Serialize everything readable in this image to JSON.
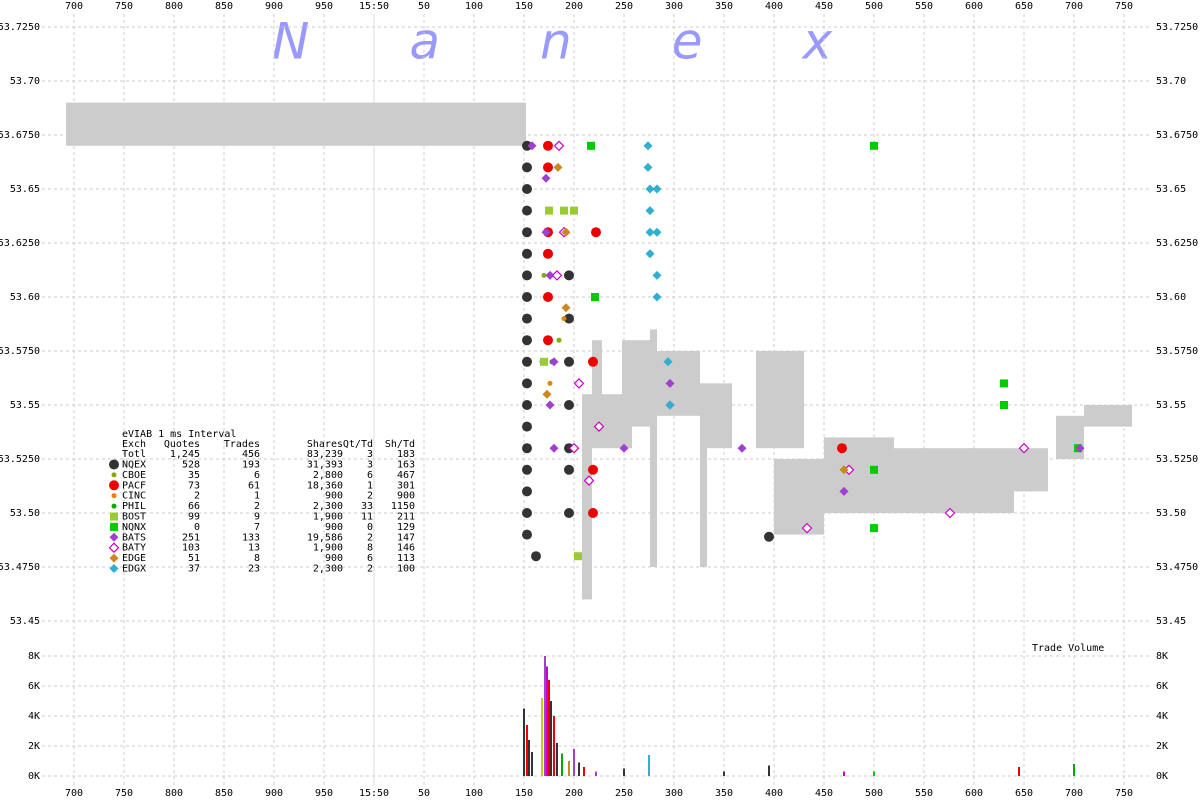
{
  "chart_data": {
    "type": "scatter",
    "watermark": "Nanex",
    "xlim": [
      -320,
      770
    ],
    "xticks": [
      {
        "value": -300,
        "label": "700"
      },
      {
        "value": -250,
        "label": "750"
      },
      {
        "value": -200,
        "label": "800"
      },
      {
        "value": -150,
        "label": "850"
      },
      {
        "value": -100,
        "label": "900"
      },
      {
        "value": -50,
        "label": "950"
      },
      {
        "value": 0,
        "label": "15:50"
      },
      50,
      100,
      150,
      200,
      250,
      300,
      350,
      400,
      450,
      500,
      550,
      600,
      650,
      700,
      750
    ],
    "ylim": [
      53.45,
      53.725
    ],
    "yticks": [
      {
        "value": 53.725,
        "label": "53.7250"
      },
      {
        "value": 53.7,
        "label": "53.70"
      },
      {
        "value": 53.675,
        "label": "53.6750"
      },
      53.65,
      {
        "value": 53.625,
        "label": "53.6250"
      },
      {
        "value": 53.6,
        "label": "53.60"
      },
      {
        "value": 53.575,
        "label": "53.5750"
      },
      53.55,
      {
        "value": 53.525,
        "label": "53.5250"
      },
      {
        "value": 53.5,
        "label": "53.50"
      },
      {
        "value": 53.475,
        "label": "53.4750"
      },
      53.45
    ],
    "grid": true,
    "nbbo": {
      "color": "#cccccc",
      "x0": [
        -308,
        208,
        218,
        228,
        248,
        258,
        276,
        283,
        326,
        333,
        382,
        400,
        450,
        520,
        640,
        682,
        710
      ],
      "x1": [
        152,
        218,
        228,
        248,
        258,
        276,
        283,
        326,
        333,
        358,
        430,
        450,
        520,
        640,
        674,
        710,
        758
      ],
      "low": [
        53.67,
        53.46,
        53.53,
        53.53,
        53.53,
        53.54,
        53.475,
        53.545,
        53.475,
        53.53,
        53.53,
        53.49,
        53.5,
        53.5,
        53.51,
        53.525,
        53.54
      ],
      "high": [
        53.69,
        53.555,
        53.58,
        53.555,
        53.58,
        53.58,
        53.585,
        53.575,
        53.56,
        53.56,
        53.575,
        53.525,
        53.535,
        53.53,
        53.53,
        53.545,
        53.55
      ]
    },
    "stats": {
      "title": "eVIAB 1 ms Interval",
      "columns": [
        "Exch",
        "Quotes",
        "Trades",
        "Shares",
        "Qt/Td",
        "Sh/Td"
      ],
      "total": [
        "Totl",
        "1,245",
        "456",
        "83,239",
        "3",
        "183"
      ]
    },
    "series": [
      {
        "name": "NQEX",
        "color": "#333333",
        "marker": "circle",
        "stats": [
          "528",
          "193",
          "31,393",
          "3",
          "163"
        ],
        "x": [
          153,
          153,
          153,
          153,
          153,
          153,
          153,
          153,
          153,
          153,
          153,
          153,
          153,
          153,
          153,
          153,
          153,
          153,
          153,
          195,
          195,
          195,
          195,
          195,
          195,
          195,
          162,
          395
        ],
        "values": [
          53.67,
          53.66,
          53.65,
          53.64,
          53.63,
          53.62,
          53.61,
          53.6,
          53.59,
          53.58,
          53.57,
          53.56,
          53.55,
          53.54,
          53.53,
          53.52,
          53.51,
          53.5,
          53.49,
          53.61,
          53.59,
          53.57,
          53.55,
          53.53,
          53.52,
          53.5,
          53.48,
          53.489
        ]
      },
      {
        "name": "CBOE",
        "color": "#88aa00",
        "marker": "small",
        "stats": [
          "35",
          "6",
          "2,800",
          "6",
          "467"
        ],
        "x": [
          170,
          185
        ],
        "values": [
          53.61,
          53.58
        ]
      },
      {
        "name": "PACF",
        "color": "#ee0000",
        "marker": "circle",
        "stats": [
          "73",
          "61",
          "18,360",
          "1",
          "301"
        ],
        "x": [
          174,
          174,
          174,
          174,
          174,
          174,
          219,
          219,
          219,
          222,
          468
        ],
        "values": [
          53.67,
          53.66,
          53.63,
          53.62,
          53.6,
          53.58,
          53.57,
          53.52,
          53.5,
          53.63,
          53.53
        ]
      },
      {
        "name": "CINC",
        "color": "#dd8800",
        "marker": "small",
        "stats": [
          "2",
          "1",
          "900",
          "2",
          "900"
        ],
        "x": [
          190,
          176
        ],
        "values": [
          53.59,
          53.56
        ]
      },
      {
        "name": "PHIL",
        "color": "#00aa00",
        "marker": "small",
        "stats": [
          "66",
          "2",
          "2,300",
          "33",
          "1150"
        ],
        "x": [
          168,
          178
        ],
        "values": [
          53.57,
          53.57
        ]
      },
      {
        "name": "BOST",
        "color": "#99cc33",
        "marker": "square",
        "stats": [
          "99",
          "9",
          "1,900",
          "11",
          "211"
        ],
        "x": [
          175,
          190,
          200,
          204,
          170
        ],
        "values": [
          53.64,
          53.64,
          53.64,
          53.48,
          53.57
        ]
      },
      {
        "name": "NQNX",
        "color": "#00cc00",
        "marker": "square",
        "stats": [
          "0",
          "7",
          "900",
          "0",
          "129"
        ],
        "x": [
          217,
          221,
          500,
          500,
          500,
          630,
          630,
          704
        ],
        "values": [
          53.67,
          53.6,
          53.67,
          53.52,
          53.493,
          53.56,
          53.55,
          53.53
        ]
      },
      {
        "name": "BATS",
        "color": "#a040d0",
        "marker": "diamond",
        "stats": [
          "251",
          "133",
          "19,586",
          "2",
          "147"
        ],
        "x": [
          158,
          172,
          172,
          176,
          180,
          176,
          180,
          250,
          296,
          296,
          368,
          470,
          706
        ],
        "values": [
          53.67,
          53.655,
          53.63,
          53.61,
          53.57,
          53.55,
          53.53,
          53.53,
          53.56,
          53.55,
          53.53,
          53.51,
          53.53
        ]
      },
      {
        "name": "BATY",
        "color": "#cc00cc",
        "marker": "diamond-open",
        "stats": [
          "103",
          "13",
          "1,900",
          "8",
          "146"
        ],
        "x": [
          185,
          190,
          183,
          205,
          225,
          200,
          215,
          433,
          576,
          475,
          650
        ],
        "values": [
          53.67,
          53.63,
          53.61,
          53.56,
          53.54,
          53.53,
          53.515,
          53.493,
          53.5,
          53.52,
          53.53
        ]
      },
      {
        "name": "EDGE",
        "color": "#cc8820",
        "marker": "diamond",
        "stats": [
          "51",
          "8",
          "900",
          "6",
          "113"
        ],
        "x": [
          184,
          192,
          192,
          173,
          470
        ],
        "values": [
          53.66,
          53.63,
          53.595,
          53.555,
          53.52
        ]
      },
      {
        "name": "EDGX",
        "color": "#30b0d0",
        "marker": "diamond",
        "stats": [
          "37",
          "23",
          "2,300",
          "2",
          "100"
        ],
        "x": [
          274,
          274,
          276,
          283,
          276,
          276,
          283,
          276,
          283,
          283,
          294,
          296
        ],
        "values": [
          53.67,
          53.66,
          53.65,
          53.65,
          53.64,
          53.63,
          53.63,
          53.62,
          53.61,
          53.6,
          53.57,
          53.55
        ]
      }
    ],
    "volume": {
      "label": "Trade Volume",
      "ylim": [
        0,
        8000
      ],
      "yticks": [
        {
          "value": 0,
          "label": "0K"
        },
        {
          "value": 2000,
          "label": "2K"
        },
        {
          "value": 4000,
          "label": "4K"
        },
        {
          "value": 6000,
          "label": "6K"
        },
        {
          "value": 8000,
          "label": "8K"
        }
      ],
      "x": [
        150,
        153,
        155,
        158,
        168,
        171,
        173,
        175,
        177,
        180,
        183,
        188,
        195,
        200,
        205,
        210,
        222,
        250,
        275,
        350,
        395,
        470,
        500,
        645,
        700
      ],
      "values": [
        4500,
        3400,
        2400,
        1600,
        5200,
        8000,
        7300,
        6400,
        5000,
        4000,
        2200,
        1500,
        1000,
        1800,
        900,
        600,
        300,
        500,
        1400,
        300,
        700,
        300,
        300,
        600,
        800
      ],
      "colors": [
        "#333333",
        "#ee0000",
        "#333333",
        "#333333",
        "#cccc00",
        "#a040d0",
        "#cc00cc",
        "#ee0000",
        "#333333",
        "#ee0000",
        "#333333",
        "#00aa00",
        "#cc8820",
        "#a040d0",
        "#333333",
        "#ee0000",
        "#a040d0",
        "#333333",
        "#30b0d0",
        "#333333",
        "#333333",
        "#cc00cc",
        "#00cc00",
        "#ee0000",
        "#00aa00"
      ]
    }
  }
}
